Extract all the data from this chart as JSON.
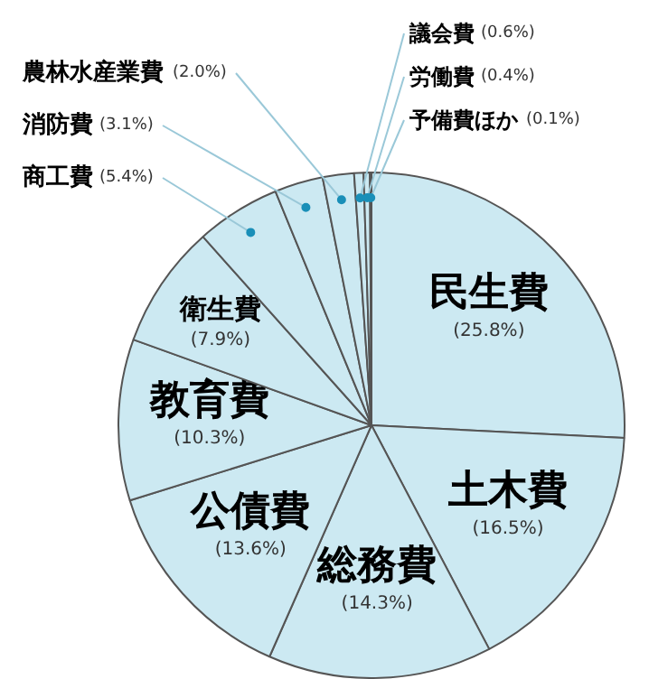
{
  "chart_data": {
    "type": "pie",
    "categories": [
      "民生費",
      "土木費",
      "総務費",
      "公債費",
      "教育費",
      "衛生費",
      "商工費",
      "消防費",
      "農林水産業費",
      "議会費",
      "労働費",
      "予備費ほか"
    ],
    "values": [
      25.8,
      16.5,
      14.3,
      13.6,
      10.3,
      7.9,
      5.4,
      3.1,
      2.0,
      0.6,
      0.4,
      0.1
    ],
    "value_labels": [
      "(25.8%)",
      "(16.5%)",
      "(14.3%)",
      "(13.6%)",
      "(10.3%)",
      "(7.9%)",
      "(5.4%)",
      "(3.1%)",
      "(2.0%)",
      "(0.6%)",
      "(0.4%)",
      "(0.1%)"
    ],
    "colors": [
      "#cce9f2",
      "#cce9f2",
      "#cce9f2",
      "#cce9f2",
      "#cce9f2",
      "#cce9f2",
      "#cce9f2",
      "#cce9f2",
      "#cce9f2",
      "#cce9f2",
      "#cce9f2",
      "#cce9f2"
    ]
  }
}
